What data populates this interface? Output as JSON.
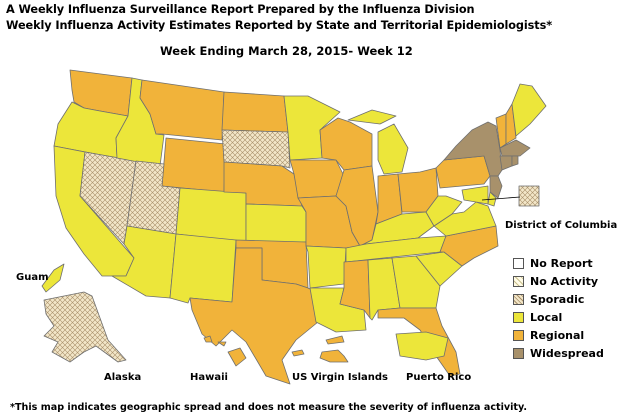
{
  "header": {
    "title_line1": "A Weekly Influenza Surveillance Report Prepared by the Influenza Division",
    "title_line2": "Weekly Influenza Activity Estimates Reported by State and Territorial Epidemiologists*",
    "week_label": "Week Ending March 28, 2015- Week 12"
  },
  "footnote": "*This map indicates geographic spread and does not measure the severity of influenza activity.",
  "colors": {
    "No Report": "#ffffff",
    "No Activity": "#fffbd9",
    "Sporadic": "#e7d9b9",
    "Local": "#ece63a",
    "Regional": "#f1b33a",
    "Widespread": "#a8916b"
  },
  "legend": [
    {
      "label": "No Report",
      "level": "No Report"
    },
    {
      "label": "No Activity",
      "level": "No Activity"
    },
    {
      "label": "Sporadic",
      "level": "Sporadic"
    },
    {
      "label": "Local",
      "level": "Local"
    },
    {
      "label": "Regional",
      "level": "Regional"
    },
    {
      "label": "Widespread",
      "level": "Widespread"
    }
  ],
  "labels": {
    "dc": "District of Columbia",
    "guam": "Guam",
    "alaska": "Alaska",
    "hawaii": "Hawaii",
    "usvi": "US Virgin Islands",
    "pr": "Puerto Rico"
  },
  "states": {
    "WA": "Regional",
    "OR": "Local",
    "CA": "Local",
    "NV": "Sporadic",
    "ID": "Local",
    "MT": "Regional",
    "WY": "Regional",
    "UT": "Sporadic",
    "AZ": "Local",
    "CO": "Local",
    "NM": "Local",
    "ND": "Regional",
    "SD": "Sporadic",
    "NE": "Regional",
    "KS": "Local",
    "OK": "Regional",
    "TX": "Regional",
    "MN": "Local",
    "IA": "Regional",
    "MO": "Regional",
    "AR": "Local",
    "LA": "Local",
    "WI": "Regional",
    "IL": "Regional",
    "MI": "Local",
    "IN": "Regional",
    "OH": "Regional",
    "KY": "Local",
    "TN": "Local",
    "MS": "Regional",
    "AL": "Local",
    "GA": "Local",
    "FL": "Regional",
    "SC": "Local",
    "NC": "Regional",
    "VA": "Local",
    "WV": "Local",
    "PA": "Regional",
    "NY": "Widespread",
    "VT": "Regional",
    "NH": "Regional",
    "ME": "Local",
    "MA": "Widespread",
    "CT": "Widespread",
    "RI": "Widespread",
    "NJ": "Widespread",
    "DE": "Local",
    "MD": "Local",
    "DC": "Sporadic",
    "AK": "Sporadic",
    "HI": "Regional",
    "GU": "Local",
    "VI": "Regional",
    "PR": "Local"
  }
}
